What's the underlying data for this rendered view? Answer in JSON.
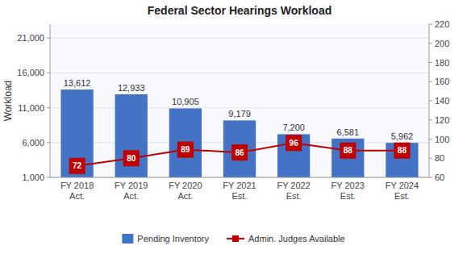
{
  "chart_data": {
    "type": "bar",
    "title": "Federal Sector Hearings Workload",
    "categories": [
      "FY 2018\nAct.",
      "FY 2019\nAct.",
      "FY 2020\nAct.",
      "FY 2021\nEst.",
      "FY 2022\nEst.",
      "FY 2023\nEst.",
      "FY 2024\nEst."
    ],
    "series": [
      {
        "name": "Pending Inventory",
        "type": "bar",
        "color": "#4472C4",
        "values": [
          13612,
          12933,
          10905,
          9179,
          7200,
          6581,
          5962
        ],
        "value_labels": [
          "13,612",
          "12,933",
          "10,905",
          "9,179",
          "7,200",
          "6,581",
          "5,962"
        ],
        "data_labels": true
      },
      {
        "name": "Admin. Judges Available",
        "type": "line",
        "color": "#C00000",
        "marker": "square",
        "axis": "y2",
        "values": [
          72,
          80,
          89,
          86,
          96,
          88,
          88
        ],
        "data_labels": true
      }
    ],
    "ylabel": "Workload",
    "ylim": [
      1000,
      23000
    ],
    "yticks": [
      {
        "value": 1000,
        "label": "1,000"
      },
      {
        "value": 6000,
        "label": "6,000"
      },
      {
        "value": 11000,
        "label": "11,000"
      },
      {
        "value": 16000,
        "label": "16,000"
      },
      {
        "value": 21000,
        "label": "21,000"
      }
    ],
    "y2lim": [
      60,
      220
    ],
    "y2ticks": [
      60,
      80,
      100,
      120,
      140,
      160,
      180,
      200,
      220
    ],
    "grid": true,
    "legend": "bottom"
  }
}
